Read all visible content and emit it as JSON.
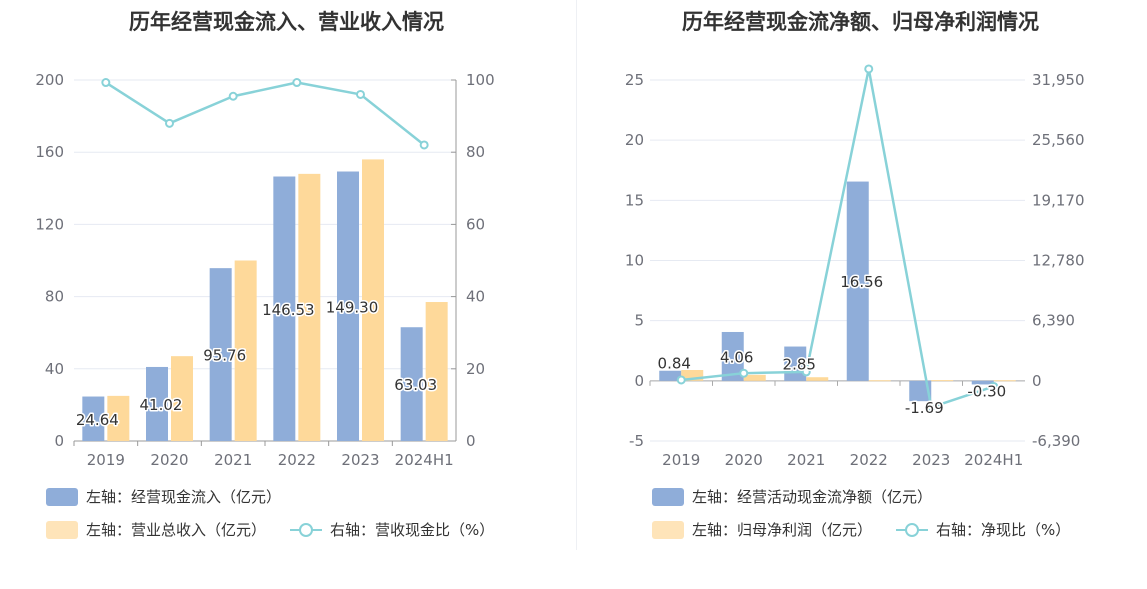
{
  "colors": {
    "bar1": "#8fadd9",
    "bar2": "#fed99a",
    "line": "#88d2d8",
    "grid": "#e6eaf2",
    "axis": "#6e7079",
    "zero": "#999999"
  },
  "chart_data": [
    {
      "type": "bar",
      "title": "历年经营现金流入、营业收入情况",
      "categories": [
        "2019",
        "2020",
        "2021",
        "2022",
        "2023",
        "2024H1"
      ],
      "series": [
        {
          "name": "左轴：经营现金流入（亿元）",
          "axis": "left",
          "type": "bar",
          "values": [
            24.64,
            41.02,
            95.76,
            146.53,
            149.3,
            63.03
          ],
          "labels": [
            "24.64",
            "41.02",
            "95.76",
            "146.53",
            "149.30",
            "63.03"
          ]
        },
        {
          "name": "左轴：营业总收入（亿元）",
          "axis": "left",
          "type": "bar",
          "values": [
            25,
            47,
            100,
            148,
            156,
            77
          ]
        },
        {
          "name": "右轴：营收现金比（%）",
          "axis": "right",
          "type": "line",
          "values": [
            99.3,
            88.0,
            95.5,
            99.3,
            96.0,
            82.0
          ]
        }
      ],
      "ylim_left": [
        0,
        200
      ],
      "yticks_left": [
        "0",
        "40",
        "80",
        "120",
        "160",
        "200"
      ],
      "ylim_right": [
        0,
        100
      ],
      "yticks_right": [
        "0",
        "20",
        "40",
        "60",
        "80",
        "100"
      ],
      "grid": true,
      "legend_position": "bottom"
    },
    {
      "type": "bar",
      "title": "历年经营现金流净额、归母净利润情况",
      "categories": [
        "2019",
        "2020",
        "2021",
        "2022",
        "2023",
        "2024H1"
      ],
      "series": [
        {
          "name": "左轴：经营活动现金流净额（亿元）",
          "axis": "left",
          "type": "bar",
          "values": [
            0.84,
            4.06,
            2.85,
            16.56,
            -1.69,
            -0.3
          ],
          "labels": [
            "0.84",
            "4.06",
            "2.85",
            "16.56",
            "-1.69",
            "-0.30"
          ]
        },
        {
          "name": "左轴：归母净利润（亿元）",
          "axis": "left",
          "type": "bar",
          "values": [
            0.9,
            0.5,
            0.3,
            0.05,
            0.06,
            0.05
          ]
        },
        {
          "name": "右轴：净现比（%）",
          "axis": "right",
          "type": "line",
          "values": [
            93,
            812,
            950,
            33120,
            -2817,
            -600
          ]
        }
      ],
      "ylim_left": [
        -5,
        25
      ],
      "yticks_left": [
        "-5",
        "0",
        "5",
        "10",
        "15",
        "20",
        "25"
      ],
      "ylim_right": [
        -6390,
        31950
      ],
      "yticks_right": [
        "-6,390",
        "0",
        "6,390",
        "12,780",
        "19,170",
        "25,560",
        "31,950"
      ],
      "grid": true,
      "legend_position": "bottom"
    }
  ]
}
